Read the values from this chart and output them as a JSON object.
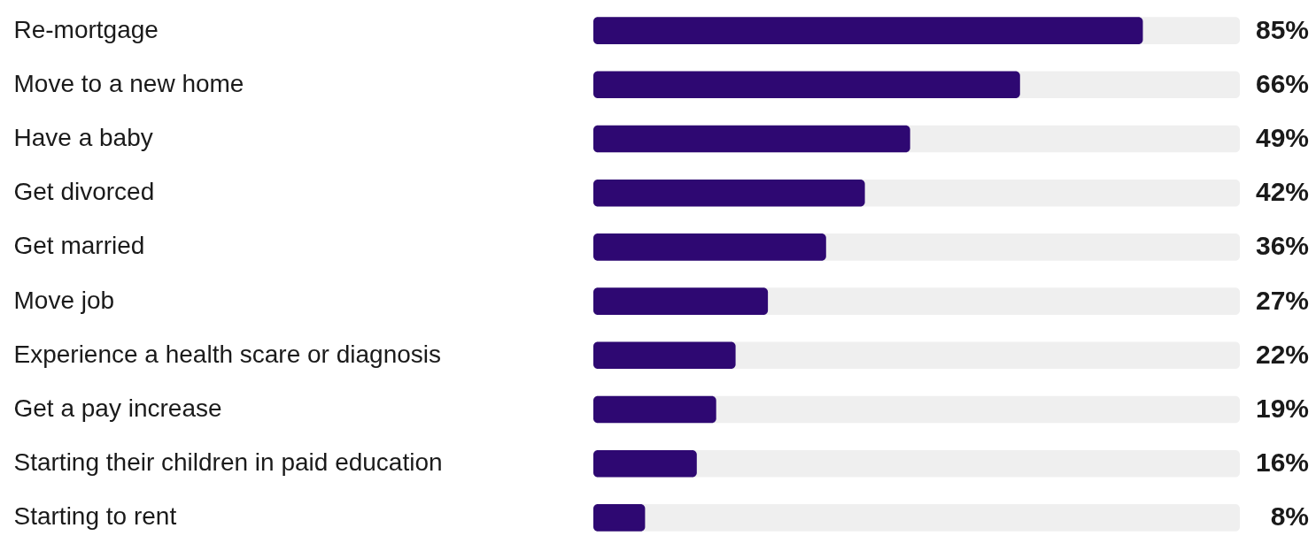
{
  "chart_data": {
    "type": "bar",
    "orientation": "horizontal",
    "categories": [
      "Re-mortgage",
      "Move to a new home",
      "Have a baby",
      "Get divorced",
      "Get married",
      "Move job",
      "Experience a health scare or diagnosis",
      "Get a pay increase",
      "Starting their children in paid education",
      "Starting to rent"
    ],
    "values": [
      85,
      66,
      49,
      42,
      36,
      27,
      22,
      19,
      16,
      8
    ],
    "color": "#2e0872",
    "xlim": [
      0,
      100
    ],
    "value_labels": [
      "85%",
      "66%",
      "49%",
      "42%",
      "36%",
      "27%",
      "22%",
      "19%",
      "16%",
      "8%"
    ]
  }
}
